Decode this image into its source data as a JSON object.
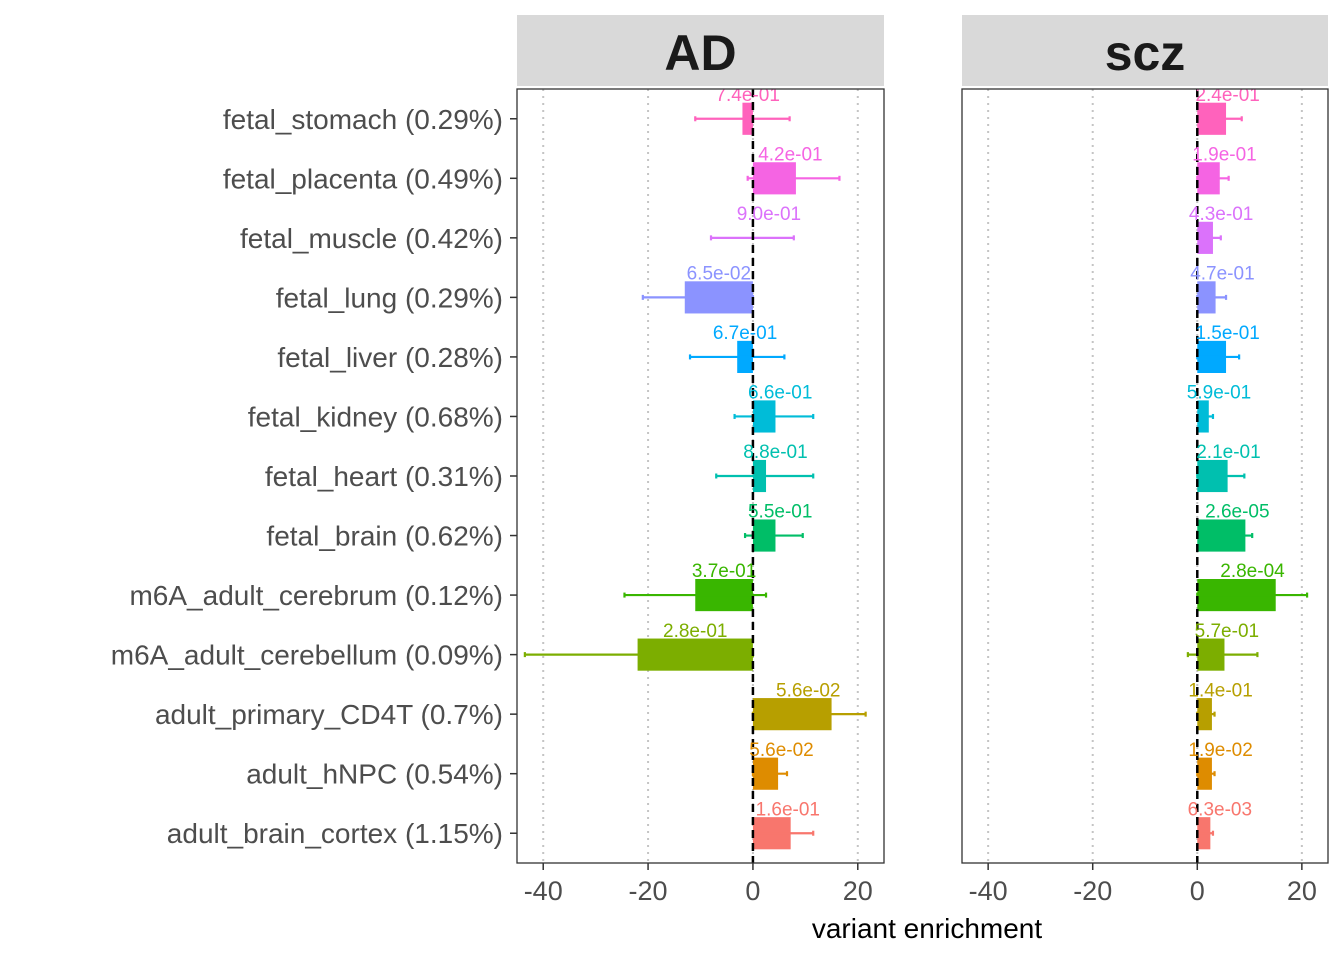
{
  "chart_data": {
    "type": "bar",
    "orientation": "horizontal",
    "xlabel": "variant enrichment",
    "ylabel": "",
    "xlim": [
      -45,
      25
    ],
    "xticks": [
      -40,
      -20,
      0,
      20
    ],
    "grid": "vertical dotted",
    "reference_line": 0,
    "categories": [
      "fetal_stomach (0.29%)",
      "fetal_placenta (0.49%)",
      "fetal_muscle (0.42%)",
      "fetal_lung (0.29%)",
      "fetal_liver (0.28%)",
      "fetal_kidney (0.68%)",
      "fetal_heart (0.31%)",
      "fetal_brain (0.62%)",
      "m6A_adult_cerebrum (0.12%)",
      "m6A_adult_cerebellum (0.09%)",
      "adult_primary_CD4T (0.7%)",
      "adult_hNPC (0.54%)",
      "adult_brain_cortex (1.15%)"
    ],
    "colors": [
      "#FF62BC",
      "#F564E3",
      "#DB72FB",
      "#8B93FF",
      "#00A9FF",
      "#00BCD8",
      "#00C0AF",
      "#00BE67",
      "#39B600",
      "#7CAE00",
      "#B79F00",
      "#DE8C00",
      "#F8766D"
    ],
    "panels": [
      {
        "name": "AD",
        "values": [
          -2,
          8.2,
          0,
          -13,
          -3,
          4.3,
          2.5,
          4.3,
          -11,
          -22,
          15,
          4.8,
          7.2
        ],
        "error_low": [
          -11,
          -1,
          -8,
          -21,
          -12,
          -3.5,
          -7,
          -1.5,
          -24.5,
          -43.5,
          0,
          0,
          0
        ],
        "error_high": [
          7,
          16.5,
          7.8,
          0,
          6,
          11.5,
          11.5,
          9.5,
          2.5,
          0,
          21.5,
          6.5,
          11.5
        ],
        "pvalue_labels": [
          "7.4e-01",
          "4.2e-01",
          "9.0e-01",
          "6.5e-02",
          "6.7e-01",
          "6.6e-01",
          "8.8e-01",
          "5.5e-01",
          "3.7e-01",
          "2.8e-01",
          "5.6e-02",
          "5.6e-02",
          "1.6e-01"
        ]
      },
      {
        "name": "scz",
        "values": [
          5.5,
          4.3,
          3,
          3.5,
          5.5,
          2.2,
          5.8,
          9.2,
          15,
          5.2,
          2.8,
          2.8,
          2.5
        ],
        "error_low": [
          0,
          0,
          0,
          0,
          0,
          0,
          0,
          0,
          0,
          -1.8,
          0,
          0,
          0
        ],
        "error_high": [
          8.5,
          6,
          4.5,
          5.5,
          8,
          3,
          9,
          10.5,
          21,
          11.5,
          3.3,
          3.3,
          3
        ],
        "pvalue_labels": [
          "2.4e-01",
          "1.9e-01",
          "4.3e-01",
          "4.7e-01",
          "1.5e-01",
          "5.9e-01",
          "2.1e-01",
          "2.6e-05",
          "2.8e-04",
          "5.7e-01",
          "1.4e-01",
          "1.9e-02",
          "6.3e-03"
        ]
      }
    ]
  }
}
